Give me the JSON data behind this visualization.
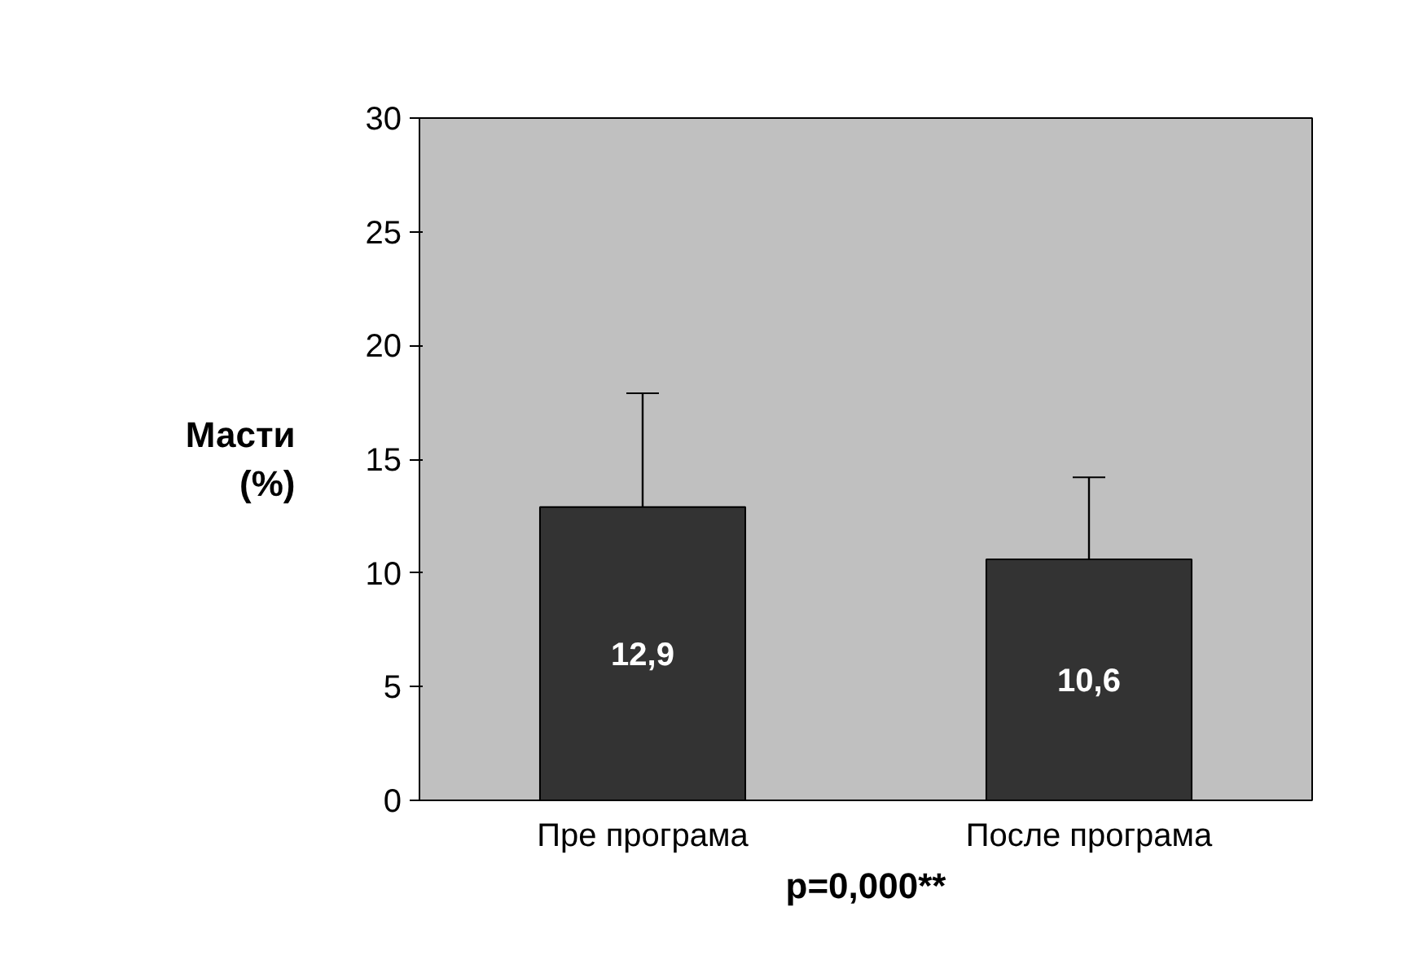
{
  "chart_data": {
    "type": "bar",
    "ylabel": "Масти\n(%)",
    "annotations": [
      "p=0,000**"
    ],
    "categories": [
      "Пре програма",
      "После програма"
    ],
    "values": [
      12.9,
      10.6
    ],
    "value_labels": [
      "12,9",
      "10,6"
    ],
    "errors": [
      5.0,
      3.6
    ],
    "color": "#333333",
    "ylim": [
      0,
      30
    ],
    "yticks": [
      0,
      5,
      10,
      15,
      20,
      25,
      30
    ],
    "grid": false
  }
}
